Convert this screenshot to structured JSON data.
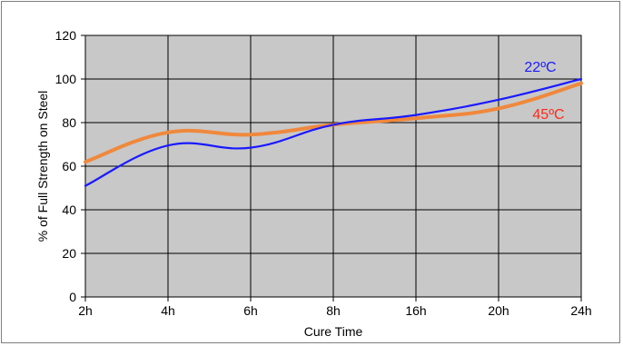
{
  "chart_data": {
    "type": "line",
    "categories": [
      "2h",
      "4h",
      "6h",
      "8h",
      "16h",
      "20h",
      "24h"
    ],
    "series": [
      {
        "name": "22ºC",
        "color": "#1a1aff",
        "values": [
          51,
          69.5,
          68.5,
          79,
          83.5,
          90.5,
          100
        ]
      },
      {
        "name": "45ºC",
        "color": "#f0883c",
        "values": [
          62,
          75.5,
          74.5,
          79,
          82,
          86.5,
          98
        ]
      }
    ],
    "xlabel": "Cure Time",
    "ylabel": "% of Full Strength on Steel",
    "ylim": [
      0,
      120
    ],
    "yticks": [
      "0",
      "20",
      "40",
      "60",
      "80",
      "100",
      "120"
    ],
    "grid": true,
    "plot_background": "#c8c8c8"
  }
}
